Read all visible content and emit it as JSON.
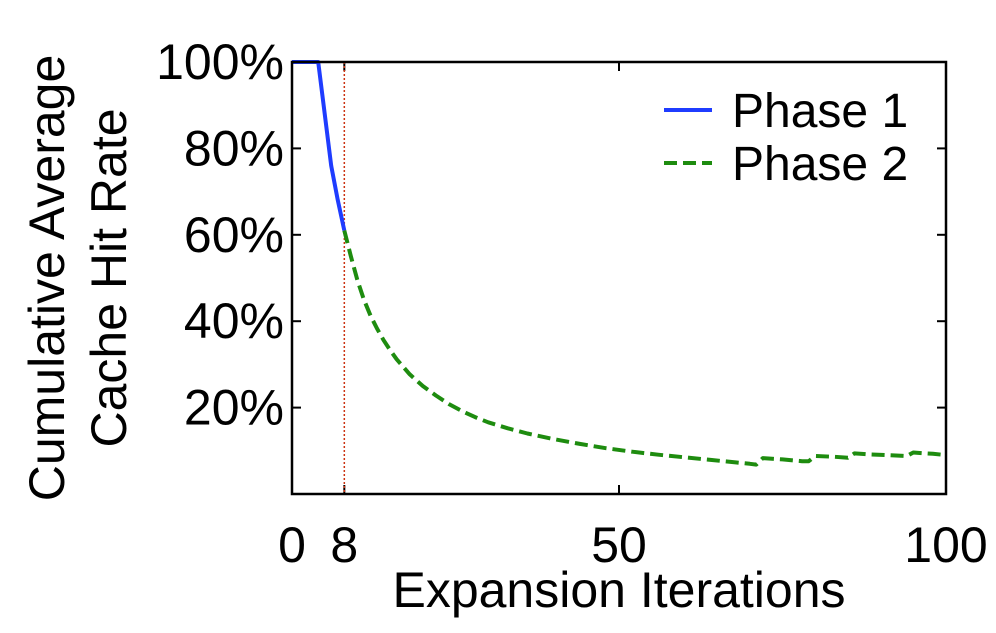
{
  "chart_data": {
    "type": "line",
    "xlabel": "Expansion Iterations",
    "ylabel_lines": [
      "Cumulative Average",
      "Cache Hit Rate"
    ],
    "xlim": [
      0,
      100
    ],
    "ylim": [
      0,
      100
    ],
    "xticks": [
      0,
      8,
      50,
      100
    ],
    "xtick_labels": [
      "0",
      "8",
      "50",
      "100"
    ],
    "yticks": [
      20,
      40,
      60,
      80,
      100
    ],
    "ytick_labels": [
      "20%",
      "40%",
      "60%",
      "80%",
      "100%"
    ],
    "grid": false,
    "legend_position": "top-right",
    "vline": {
      "x": 8,
      "color": "#cc3311"
    },
    "series": [
      {
        "name": "Phase 1",
        "color": "#1f3cff",
        "dash": "solid",
        "x": [
          0,
          1,
          2,
          3,
          4,
          5,
          6,
          7,
          8
        ],
        "y": [
          100,
          100,
          100,
          100,
          100,
          88,
          76,
          68,
          61
        ]
      },
      {
        "name": "Phase 2",
        "color": "#1e8c0f",
        "dash": "dashed",
        "x": [
          8,
          9,
          10,
          11,
          12,
          13,
          14,
          15,
          16,
          18,
          20,
          22,
          24,
          26,
          28,
          30,
          33,
          36,
          40,
          44,
          48,
          52,
          56,
          60,
          64,
          68,
          70,
          71,
          72,
          75,
          78,
          79,
          80,
          83,
          85,
          86,
          88,
          91,
          94,
          95,
          96,
          98,
          100
        ],
        "y": [
          61,
          55,
          49.5,
          45,
          41.3,
          38.3,
          35.6,
          33.3,
          31.2,
          27.7,
          25,
          22.8,
          20.8,
          19.2,
          17.8,
          16.6,
          15.2,
          14,
          12.7,
          11.6,
          10.6,
          9.8,
          9.1,
          8.5,
          7.9,
          7.3,
          7.0,
          6.8,
          8.3,
          8.0,
          7.6,
          7.6,
          8.8,
          8.6,
          8.4,
          9.4,
          9.2,
          9.0,
          8.8,
          9.6,
          9.5,
          9.3,
          9.0
        ]
      }
    ]
  }
}
